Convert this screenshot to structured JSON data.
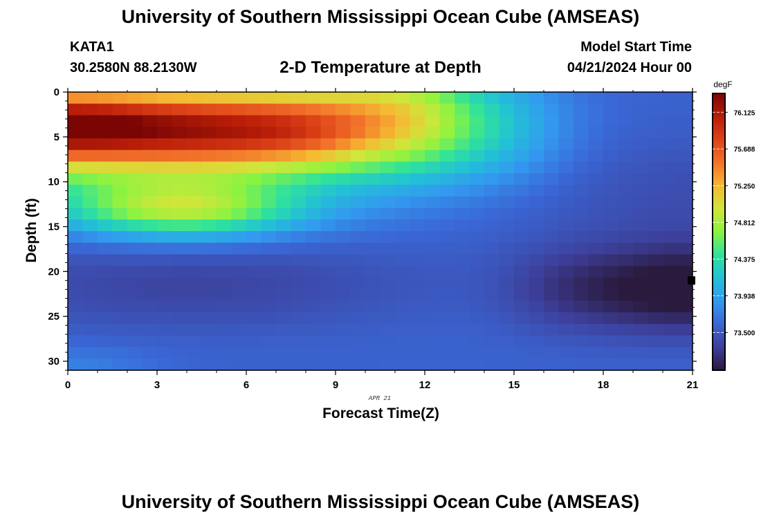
{
  "header": {
    "title": "University of Southern Mississippi Ocean Cube (AMSEAS)",
    "station": "KATA1",
    "coords": "30.2580N  88.2130W",
    "subtitle": "2-D Temperature at Depth",
    "model_label": "Model Start Time",
    "model_time": "04/21/2024 Hour 00"
  },
  "footer": {
    "title": "University of Southern Mississippi Ocean Cube (AMSEAS)"
  },
  "chart_data": {
    "type": "heatmap",
    "title": "2-D Temperature at Depth",
    "xlabel": "Forecast Time(Z)",
    "ylabel": "Depth (ft)",
    "date_label": "APR 21",
    "x_ticks": [
      "0",
      "3",
      "6",
      "9",
      "12",
      "15",
      "18",
      "21"
    ],
    "y_ticks": [
      "0",
      "5",
      "10",
      "15",
      "20",
      "25",
      "30"
    ],
    "xlim": [
      0,
      21
    ],
    "ylim": [
      31,
      0
    ],
    "colorbar": {
      "unit": "degF",
      "ticks": [
        "76.125",
        "75.688",
        "75.250",
        "74.812",
        "74.375",
        "73.938",
        "73.500"
      ],
      "range": [
        73.05,
        76.35
      ],
      "colors": [
        "#2a1a3e",
        "#3d3f9a",
        "#3a66d4",
        "#3399f0",
        "#22c1d6",
        "#2fe29b",
        "#8bf340",
        "#d0e63a",
        "#f6b832",
        "#f2722a",
        "#dd4318",
        "#b81d08",
        "#7a0604"
      ]
    },
    "marker": {
      "time": 21,
      "depth": 21
    }
  }
}
